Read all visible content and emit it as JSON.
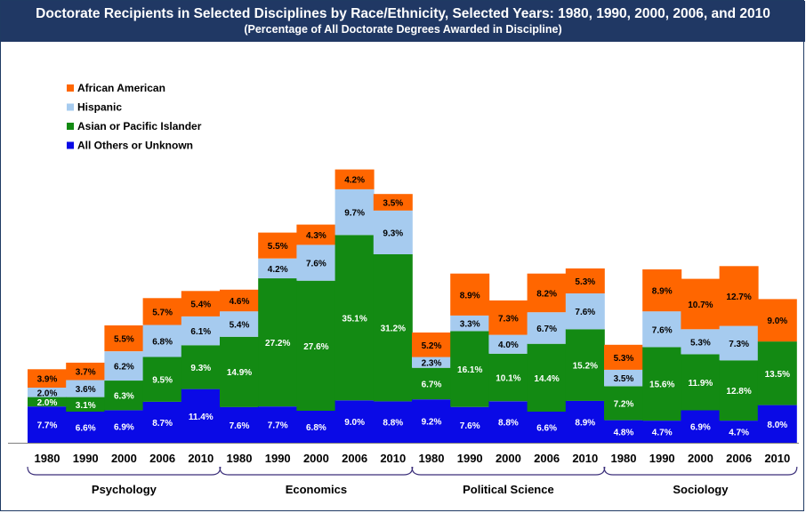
{
  "title": "Doctorate Recipients in Selected Disciplines by Race/Ethnicity, Selected Years: 1980, 1990, 2000, 2006, and 2010",
  "subtitle": "(Percentage of All Doctorate Degrees Awarded in Discipline)",
  "colors": {
    "African American": "#ff6600",
    "Hispanic": "#a6cbef",
    "Asian or Pacific Islander": "#138a13",
    "All Others or Unknown": "#0a0ae6"
  },
  "chart_data": {
    "type": "bar",
    "stacked": true,
    "title": "Doctorate Recipients in Selected Disciplines by Race/Ethnicity, Selected Years: 1980, 1990, 2000, 2006, and 2010",
    "subtitle": "(Percentage of All Doctorate Degrees Awarded in Discipline)",
    "legend_position": "top-left",
    "groups": [
      "Psychology",
      "Economics",
      "Political Science",
      "Sociology"
    ],
    "years": [
      "1980",
      "1990",
      "2000",
      "2006",
      "2010"
    ],
    "categories": [
      "1980",
      "1990",
      "2000",
      "2006",
      "2010",
      "1980",
      "1990",
      "2000",
      "2006",
      "2010",
      "1980",
      "1990",
      "2000",
      "2006",
      "2010",
      "1980",
      "1990",
      "2000",
      "2006",
      "2010"
    ],
    "series": [
      {
        "name": "All Others or Unknown",
        "values": [
          7.7,
          6.6,
          6.9,
          8.7,
          11.4,
          7.6,
          7.7,
          6.8,
          9.0,
          8.8,
          9.2,
          7.6,
          8.8,
          6.6,
          8.9,
          4.8,
          4.7,
          6.9,
          4.7,
          8.0
        ]
      },
      {
        "name": "Asian or Pacific Islander",
        "values": [
          2.0,
          3.1,
          6.3,
          9.5,
          9.3,
          14.9,
          27.2,
          27.6,
          35.1,
          31.2,
          6.7,
          16.1,
          10.1,
          14.4,
          15.2,
          7.2,
          15.6,
          11.9,
          12.8,
          13.5
        ]
      },
      {
        "name": "Hispanic",
        "values": [
          2.0,
          3.6,
          6.2,
          6.8,
          6.1,
          5.4,
          4.2,
          7.6,
          9.7,
          9.3,
          2.3,
          3.3,
          4.0,
          6.7,
          7.6,
          3.5,
          7.6,
          5.3,
          7.3,
          null
        ]
      },
      {
        "name": "African American",
        "values": [
          3.9,
          3.7,
          5.5,
          5.7,
          5.4,
          4.6,
          5.5,
          4.3,
          4.2,
          3.5,
          5.2,
          8.9,
          7.3,
          8.2,
          5.3,
          5.3,
          8.9,
          10.7,
          12.7,
          9.0
        ]
      }
    ],
    "legend_order": [
      "African American",
      "Hispanic",
      "Asian or Pacific Islander",
      "All Others or Unknown"
    ],
    "grid": false,
    "ylim": [
      0,
      60
    ]
  }
}
